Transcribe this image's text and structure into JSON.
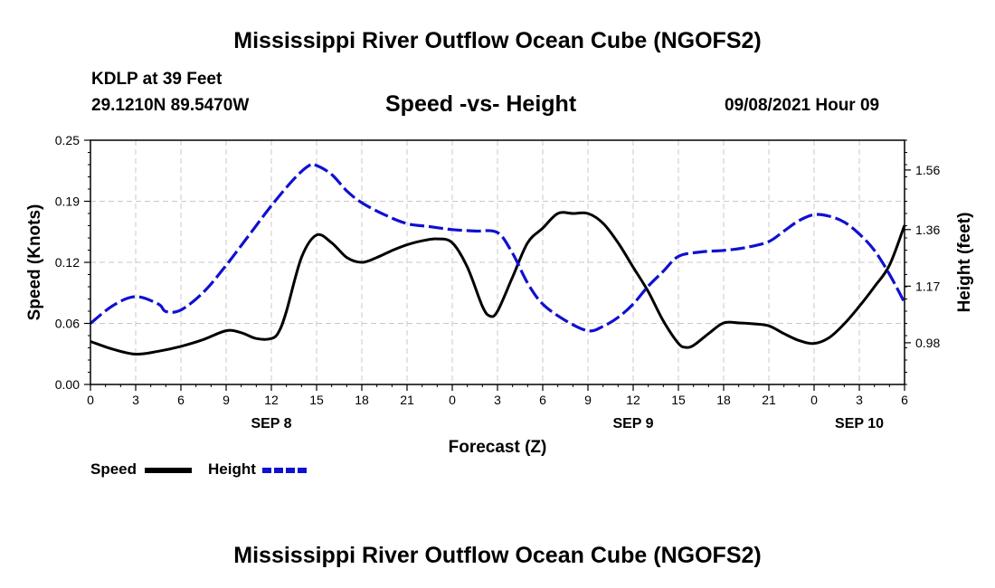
{
  "header": {
    "title": "Mississippi River Outflow Ocean Cube (NGOFS2)",
    "station": "KDLP at 39 Feet",
    "coordinates": "29.1210N  89.5470W",
    "subtitle": "Speed -vs- Height",
    "datetime": "09/08/2021 Hour 09"
  },
  "footer": {
    "title": "Mississippi River Outflow Ocean Cube (NGOFS2)"
  },
  "legend": {
    "speed_label": "Speed",
    "height_label": "Height"
  },
  "colors": {
    "speed": "#000000",
    "height": "#1010d0",
    "grid": "#c8c8c8"
  },
  "chart_data": {
    "type": "line",
    "title": "Speed -vs- Height",
    "xlabel": "Forecast (Z)",
    "ylabel_left": "Speed (Knots)",
    "ylabel_right": "Height (feet)",
    "x_range_hours": [
      0,
      54
    ],
    "x_ticks": [
      {
        "h": 0,
        "label": "0"
      },
      {
        "h": 3,
        "label": "3"
      },
      {
        "h": 6,
        "label": "6"
      },
      {
        "h": 9,
        "label": "9"
      },
      {
        "h": 12,
        "label": "12"
      },
      {
        "h": 15,
        "label": "15"
      },
      {
        "h": 18,
        "label": "18"
      },
      {
        "h": 21,
        "label": "21"
      },
      {
        "h": 24,
        "label": "0"
      },
      {
        "h": 27,
        "label": "3"
      },
      {
        "h": 30,
        "label": "6"
      },
      {
        "h": 33,
        "label": "9"
      },
      {
        "h": 36,
        "label": "12"
      },
      {
        "h": 39,
        "label": "15"
      },
      {
        "h": 42,
        "label": "18"
      },
      {
        "h": 45,
        "label": "21"
      },
      {
        "h": 48,
        "label": "0"
      },
      {
        "h": 51,
        "label": "3"
      },
      {
        "h": 54,
        "label": "6"
      }
    ],
    "date_labels": [
      {
        "h": 12,
        "label": "SEP 8"
      },
      {
        "h": 36,
        "label": "SEP 9"
      },
      {
        "h": 51,
        "label": "SEP 10"
      }
    ],
    "y_left": {
      "range": [
        0,
        0.25
      ],
      "ticks": [
        "0.00",
        "0.06",
        "0.12",
        "0.19",
        "0.25"
      ],
      "tick_values": [
        0,
        0.0625,
        0.125,
        0.1875,
        0.25
      ]
    },
    "y_right": {
      "range": [
        0.84,
        1.66
      ],
      "ticks": [
        "0.98",
        "1.17",
        "1.36",
        "1.56"
      ],
      "tick_values": [
        0.98,
        1.17,
        1.36,
        1.56
      ]
    },
    "series": [
      {
        "name": "Speed",
        "axis": "left",
        "x": [
          0,
          1.5,
          3,
          4.5,
          6,
          7.5,
          9,
          10,
          11,
          12,
          12.5,
          13,
          14,
          15,
          16,
          17,
          18,
          19,
          20,
          21,
          22,
          23,
          24,
          25,
          26,
          26.5,
          27,
          28,
          29,
          30,
          31,
          32,
          33,
          34,
          35,
          36,
          37,
          38,
          39,
          39.5,
          40,
          41,
          42,
          43,
          44,
          45,
          46,
          47,
          48,
          49,
          50,
          51,
          52,
          53,
          54
        ],
        "values": [
          0.044,
          0.036,
          0.031,
          0.034,
          0.039,
          0.046,
          0.055,
          0.053,
          0.047,
          0.047,
          0.054,
          0.075,
          0.13,
          0.153,
          0.145,
          0.13,
          0.125,
          0.13,
          0.137,
          0.143,
          0.147,
          0.149,
          0.145,
          0.12,
          0.08,
          0.07,
          0.075,
          0.11,
          0.145,
          0.16,
          0.175,
          0.175,
          0.175,
          0.165,
          0.145,
          0.12,
          0.095,
          0.065,
          0.042,
          0.038,
          0.04,
          0.052,
          0.063,
          0.063,
          0.062,
          0.06,
          0.052,
          0.045,
          0.042,
          0.048,
          0.062,
          0.08,
          0.1,
          0.122,
          0.163
        ]
      },
      {
        "name": "Height",
        "axis": "right",
        "x": [
          0,
          1.5,
          3,
          4.5,
          5,
          6,
          7.5,
          9,
          10.5,
          12,
          13.5,
          14.5,
          15,
          16,
          17,
          18,
          19.5,
          21,
          22.5,
          24,
          25.5,
          27,
          28,
          29,
          30,
          31.5,
          33,
          34,
          35,
          36,
          37,
          38,
          39,
          40.5,
          42,
          43.5,
          45,
          46,
          47,
          48,
          49,
          50,
          51,
          52,
          53,
          54
        ],
        "values": [
          1.045,
          1.105,
          1.135,
          1.11,
          1.085,
          1.09,
          1.15,
          1.24,
          1.34,
          1.44,
          1.53,
          1.575,
          1.575,
          1.545,
          1.49,
          1.45,
          1.41,
          1.38,
          1.37,
          1.36,
          1.355,
          1.35,
          1.28,
          1.18,
          1.11,
          1.055,
          1.02,
          1.035,
          1.065,
          1.11,
          1.17,
          1.22,
          1.27,
          1.285,
          1.29,
          1.3,
          1.32,
          1.355,
          1.39,
          1.41,
          1.405,
          1.385,
          1.345,
          1.29,
          1.21,
          1.115
        ]
      }
    ]
  }
}
